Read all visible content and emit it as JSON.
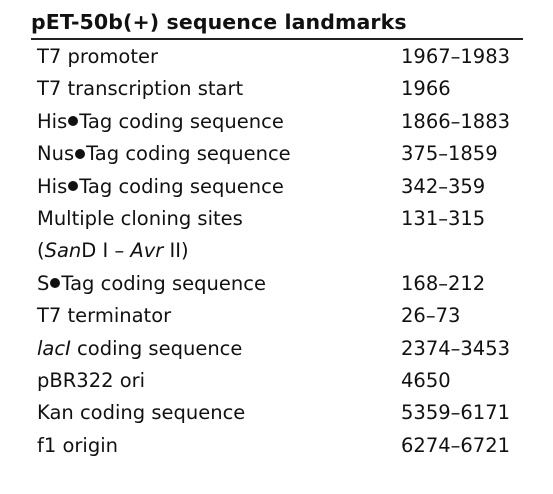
{
  "table": {
    "title": "pET-50b(+) sequence landmarks",
    "rows": [
      {
        "feature": "T7 promoter",
        "position": "1967–1983"
      },
      {
        "feature": "T7 transcription start",
        "position": "1966"
      },
      {
        "feature_pre": "His",
        "feature_post": "Tag coding sequence",
        "position": "1866–1883"
      },
      {
        "feature_pre": "Nus",
        "feature_post": "Tag coding sequence",
        "position": "375–1859"
      },
      {
        "feature_pre": "His",
        "feature_post": "Tag coding sequence",
        "position": "342–359"
      },
      {
        "feature": "Multiple cloning sites",
        "feature_line2_open": "(",
        "feature_line2_enzyme1": "San",
        "feature_line2_mid": "D I – ",
        "feature_line2_enzyme2": "Avr",
        "feature_line2_close": " II)",
        "position": "131–315"
      },
      {
        "feature_pre": "S",
        "feature_post": "Tag coding sequence",
        "position": "168–212"
      },
      {
        "feature": "T7 terminator",
        "position": "26–73"
      },
      {
        "feature_italic": "lacI",
        "feature_post": " coding sequence",
        "position": "2374–3453"
      },
      {
        "feature": "pBR322 ori",
        "position": "4650"
      },
      {
        "feature": "Kan coding sequence",
        "position": "5359–6171"
      },
      {
        "feature": "f1 origin",
        "position": "6274–6721"
      }
    ]
  }
}
